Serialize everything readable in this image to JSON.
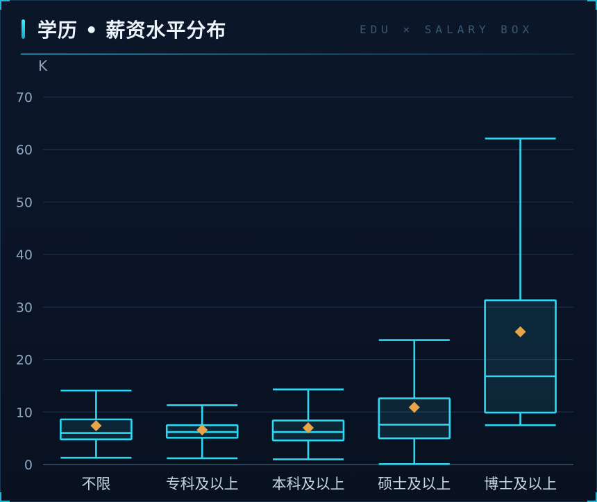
{
  "header": {
    "title": "学历 • 薪资水平分布",
    "subtitle": "EDU × SALARY BOX"
  },
  "colors": {
    "box": "#2fd8f2",
    "mean_marker": "#e6a44b",
    "grid": "#1b2d44",
    "axis_text": "#8fa6c0"
  },
  "chart_data": {
    "type": "boxplot",
    "title": "学历 • 薪资水平分布",
    "ylabel": "K",
    "xlabel": "",
    "ylim": [
      0,
      70
    ],
    "yticks": [
      0,
      10,
      20,
      30,
      40,
      50,
      60,
      70
    ],
    "grid": true,
    "categories": [
      "不限",
      "专科及以上",
      "本科及以上",
      "硕士及以上",
      "博士及以上"
    ],
    "boxes": [
      {
        "min": 1.3,
        "q1": 4.8,
        "median": 6.0,
        "q3": 8.6,
        "max": 14.1,
        "mean": 7.4
      },
      {
        "min": 1.2,
        "q1": 5.1,
        "median": 6.2,
        "q3": 7.5,
        "max": 11.3,
        "mean": 6.6
      },
      {
        "min": 1.0,
        "q1": 4.6,
        "median": 6.2,
        "q3": 8.4,
        "max": 14.3,
        "mean": 7.0
      },
      {
        "min": 0.1,
        "q1": 5.0,
        "median": 7.6,
        "q3": 12.6,
        "max": 23.7,
        "mean": 10.9
      },
      {
        "min": 7.5,
        "q1": 9.9,
        "median": 16.8,
        "q3": 31.3,
        "max": 62.1,
        "mean": 25.3
      }
    ]
  }
}
